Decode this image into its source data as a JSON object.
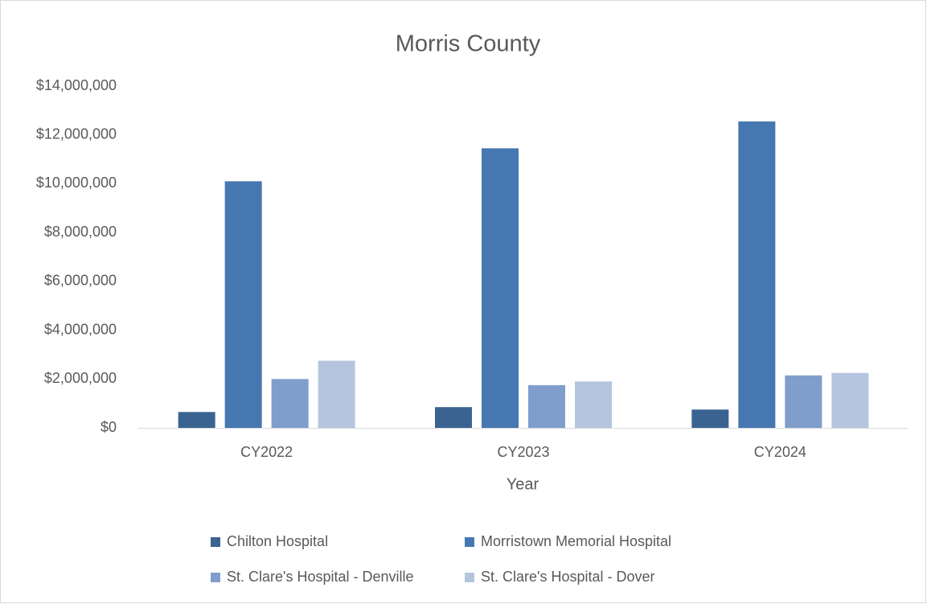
{
  "chart_data": {
    "type": "bar",
    "title": "Morris County",
    "x_label": "Year",
    "categories": [
      "CY2022",
      "CY2023",
      "CY2024"
    ],
    "series": [
      {
        "name": "Chilton Hospital",
        "color": "#3b6392",
        "values": [
          650000,
          850000,
          750000
        ]
      },
      {
        "name": "Morristown Memorial Hospital",
        "color": "#4677b0",
        "values": [
          10100000,
          11450000,
          12550000
        ]
      },
      {
        "name": "St. Clare's Hospital - Denville",
        "color": "#7f9ecb",
        "values": [
          2000000,
          1750000,
          2150000
        ]
      },
      {
        "name": "St. Clare's Hospital - Dover",
        "color": "#b5c5df",
        "values": [
          2750000,
          1900000,
          2250000
        ]
      }
    ],
    "ylim": [
      0,
      14000000
    ],
    "yticks": [
      {
        "value": 0,
        "label": "$0"
      },
      {
        "value": 2000000,
        "label": "$2,000,000"
      },
      {
        "value": 4000000,
        "label": "$4,000,000"
      },
      {
        "value": 6000000,
        "label": "$6,000,000"
      },
      {
        "value": 8000000,
        "label": "$8,000,000"
      },
      {
        "value": 10000000,
        "label": "$10,000,000"
      },
      {
        "value": 12000000,
        "label": "$12,000,000"
      },
      {
        "value": 14000000,
        "label": "$14,000,000"
      }
    ],
    "grid": false,
    "legend": "bottom"
  }
}
